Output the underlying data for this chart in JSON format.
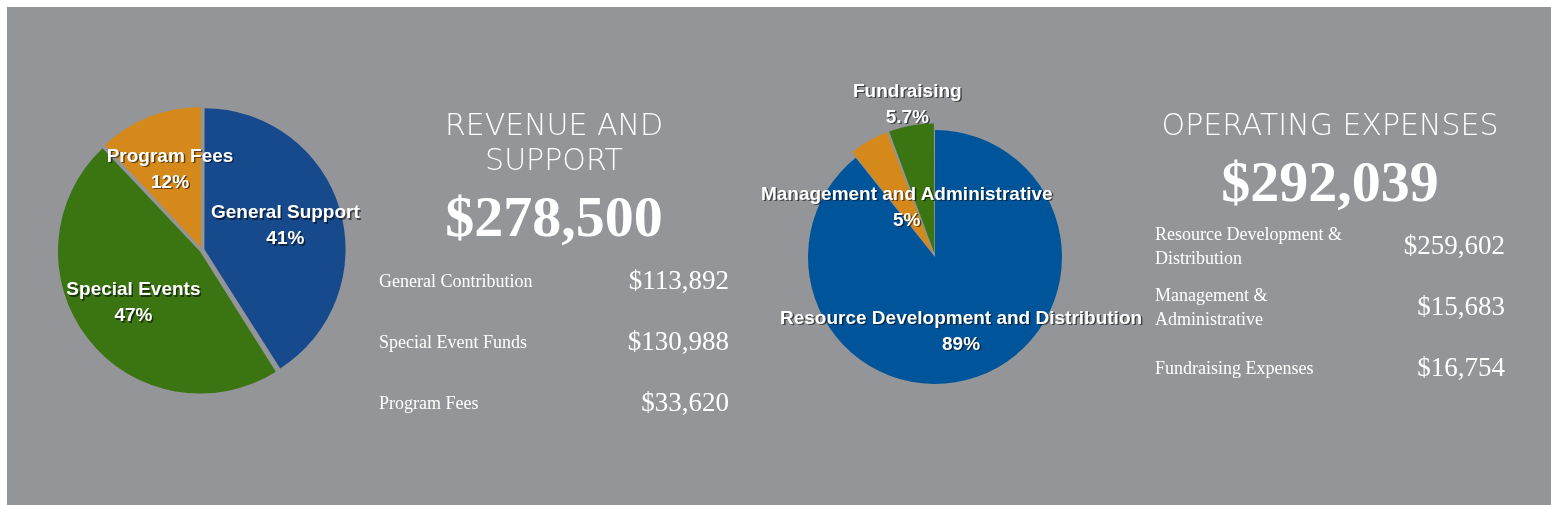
{
  "chart_data": [
    {
      "type": "pie",
      "categories": [
        "General Support",
        "Special Events",
        "Program Fees"
      ],
      "values": [
        41,
        47,
        12
      ],
      "colors": [
        "#174a8c",
        "#3a7512",
        "#d4891a"
      ],
      "value_labels": [
        "41%",
        "47%",
        "12%"
      ]
    },
    {
      "type": "other",
      "title": "REVENUE AND SUPPORT",
      "subtitle": "$278,500",
      "annotations": [
        "General Contribution",
        "$113,892",
        "Special Event Funds",
        "$130,988",
        "Program Fees",
        "$33,620"
      ]
    },
    {
      "type": "pie",
      "categories": [
        "Resource Development and Distribution",
        "Management and Administrative",
        "Fundraising"
      ],
      "values": [
        89,
        5,
        5.7
      ],
      "colors": [
        "#00559a",
        "#d4891a",
        "#3a7512"
      ],
      "value_labels": [
        "89%",
        "5%",
        "5.7%"
      ]
    },
    {
      "type": "other",
      "title": "OPERATING EXPENSES",
      "subtitle": "$292,039",
      "annotations": [
        "Resource Development & Distribution",
        "$259,602",
        "Management & Administrative",
        "$15,683",
        "Fundraising Expenses",
        "$16,754"
      ]
    }
  ]
}
